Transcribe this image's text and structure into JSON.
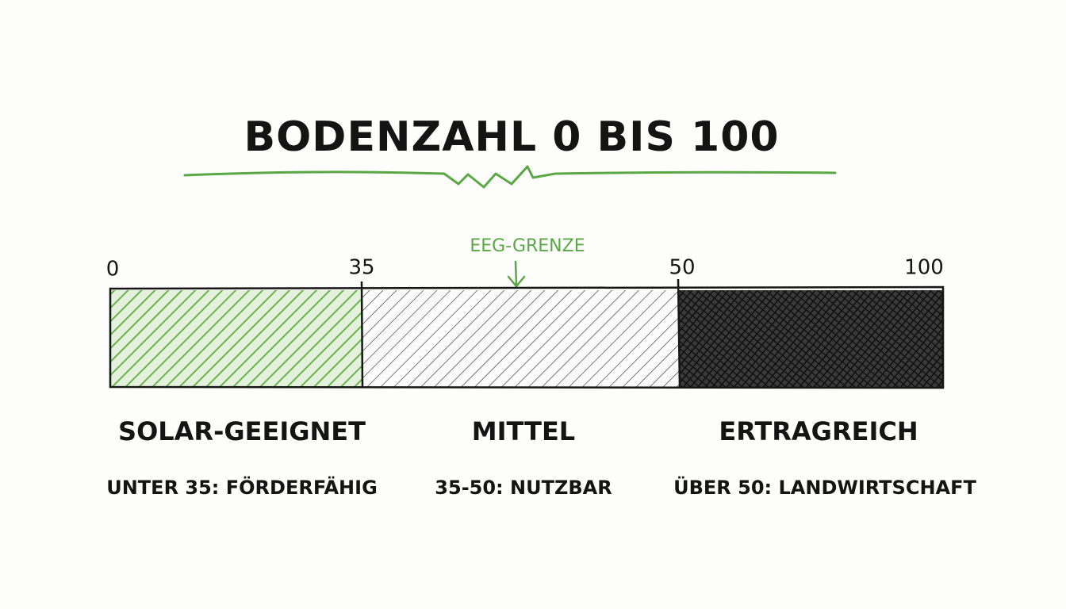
{
  "title": "BODENZAHL 0 BIS 100",
  "scale": {
    "ticks": [
      "0",
      "35",
      "50",
      "100"
    ],
    "marker": "EEG-GRENZE"
  },
  "segments": [
    {
      "label": "SOLAR-GEEIGNET",
      "description": "UNTER 35: FÖRDERFÄHIG"
    },
    {
      "label": "MITTEL",
      "description": "35-50: NUTZBAR"
    },
    {
      "label": "ERTRAGREICH",
      "description": "ÜBER 50: LANDWIRTSCHAFT"
    }
  ]
}
